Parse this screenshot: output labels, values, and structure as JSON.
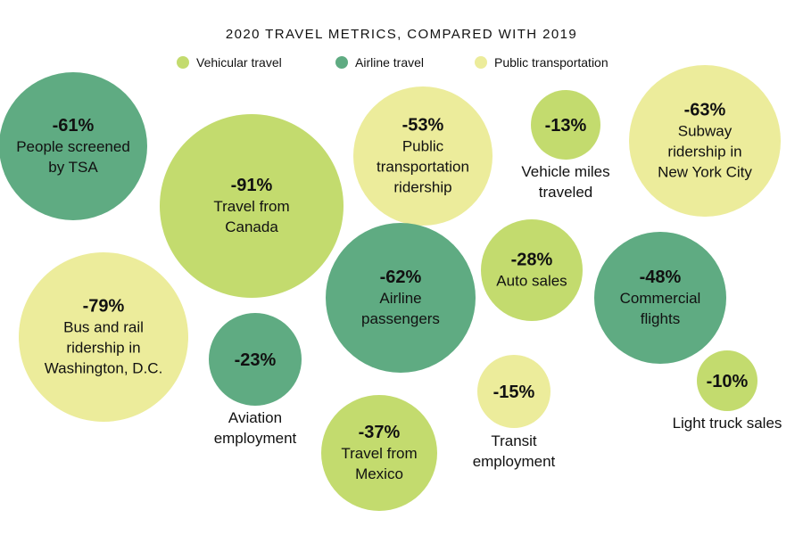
{
  "chart_data": {
    "type": "bubble",
    "title": "2020 TRAVEL METRICS, COMPARED WITH 2019",
    "legend": [
      {
        "name": "Vehicular travel",
        "color": "#c3db6e"
      },
      {
        "name": "Airline travel",
        "color": "#5fab82"
      },
      {
        "name": "Public transportation",
        "color": "#ecec9b"
      }
    ],
    "items": [
      {
        "value": "-61%",
        "label": [
          "People screened",
          "by TSA"
        ],
        "category": "Airline travel"
      },
      {
        "value": "-91%",
        "label": [
          "Travel from",
          "Canada"
        ],
        "category": "Vehicular travel"
      },
      {
        "value": "-53%",
        "label": [
          "Public",
          "transportation",
          "ridership"
        ],
        "category": "Public transportation"
      },
      {
        "value": "-13%",
        "label": [
          "Vehicle miles",
          "traveled"
        ],
        "category": "Vehicular travel"
      },
      {
        "value": "-63%",
        "label": [
          "Subway",
          "ridership in",
          "New York City"
        ],
        "category": "Public transportation"
      },
      {
        "value": "-79%",
        "label": [
          "Bus and rail",
          "ridership in",
          "Washington, D.C."
        ],
        "category": "Public transportation"
      },
      {
        "value": "-23%",
        "label": [
          "Aviation",
          "employment"
        ],
        "category": "Airline travel"
      },
      {
        "value": "-62%",
        "label": [
          "Airline",
          "passengers"
        ],
        "category": "Airline travel"
      },
      {
        "value": "-28%",
        "label": [
          "Auto sales"
        ],
        "category": "Vehicular travel"
      },
      {
        "value": "-48%",
        "label": [
          "Commercial",
          "flights"
        ],
        "category": "Airline travel"
      },
      {
        "value": "-37%",
        "label": [
          "Travel from",
          "Mexico"
        ],
        "category": "Vehicular travel"
      },
      {
        "value": "-15%",
        "label": [
          "Transit",
          "employment"
        ],
        "category": "Public transportation"
      },
      {
        "value": "-10%",
        "label": [
          "Light truck sales"
        ],
        "category": "Vehicular travel"
      }
    ]
  }
}
